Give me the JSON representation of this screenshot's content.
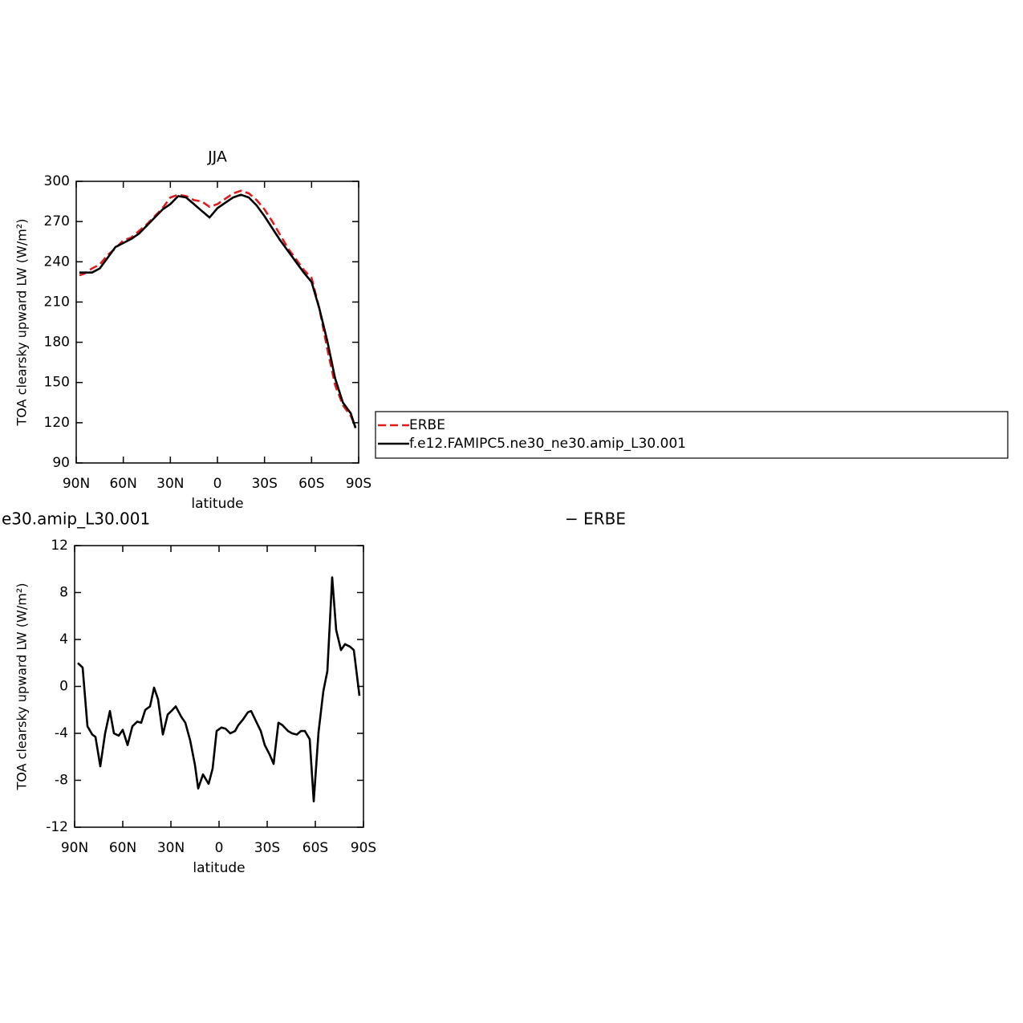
{
  "chart_data": [
    {
      "type": "line",
      "title": "JJA",
      "xlabel": "latitude",
      "ylabel": "TOA clearsky upward LW (W/m²)",
      "x": [
        88,
        85,
        80,
        75,
        70,
        65,
        60,
        55,
        50,
        45,
        40,
        35,
        30,
        25,
        20,
        15,
        10,
        5,
        0,
        -5,
        -10,
        -15,
        -20,
        -25,
        -30,
        -35,
        -40,
        -45,
        -50,
        -55,
        -60,
        -65,
        -70,
        -75,
        -80,
        -85,
        -88
      ],
      "series": [
        {
          "name": "ERBE",
          "color": "#e31a1c",
          "dashed": true,
          "values": [
            230,
            231,
            235,
            238,
            245,
            250,
            256,
            258,
            263,
            268,
            274,
            280,
            288,
            290,
            289,
            286,
            285,
            281,
            283,
            287,
            291,
            293,
            291,
            286,
            279,
            270,
            260,
            250,
            242,
            234,
            228,
            205,
            175,
            148,
            133,
            125,
            117
          ]
        },
        {
          "name": "f.e12.FAMIPC5.ne30_ne30.amip_L30.001",
          "color": "#000000",
          "dashed": false,
          "values": [
            232,
            232,
            232,
            235,
            243,
            251,
            254,
            257,
            261,
            267,
            273,
            279,
            283,
            289,
            288,
            283,
            278,
            273,
            280,
            284,
            288,
            290,
            288,
            282,
            274,
            265,
            256,
            248,
            240,
            232,
            225,
            205,
            181,
            153,
            135,
            127,
            116
          ]
        }
      ],
      "xlim": [
        90,
        -90
      ],
      "xticks": [
        {
          "value": 90,
          "label": "90N"
        },
        {
          "value": 60,
          "label": "60N"
        },
        {
          "value": 30,
          "label": "30N"
        },
        0,
        {
          "value": -30,
          "label": "30S"
        },
        {
          "value": -60,
          "label": "60S"
        },
        {
          "value": -90,
          "label": "90S"
        }
      ],
      "ylim": [
        90,
        300
      ],
      "yticks": [
        90,
        120,
        150,
        180,
        210,
        240,
        270,
        300
      ],
      "legend": "right"
    },
    {
      "type": "line",
      "title": "e30.amip_L30.001",
      "title_right": "− ERBE",
      "xlabel": "latitude",
      "ylabel": "TOA clearsky upward LW (W/m²)",
      "x": [
        88,
        85,
        82,
        79,
        77,
        74,
        71,
        68,
        65.5,
        62.5,
        60,
        57,
        54,
        51,
        48.5,
        46,
        43,
        40.5,
        38,
        35,
        32,
        29,
        27,
        23.5,
        21,
        18,
        15,
        13,
        10,
        6.5,
        4,
        1.5,
        -1.5,
        -4,
        -7,
        -10,
        -12,
        -15,
        -18,
        -20,
        -23.5,
        -26,
        -28.5,
        -31.5,
        -34,
        -37,
        -39.5,
        -43,
        -45.5,
        -48.5,
        -51,
        -53.5,
        -56.5,
        -59,
        -62,
        -65,
        -67.5,
        -70.5,
        -73,
        -76,
        -78.5,
        -81.5,
        -84,
        -87.5
      ],
      "values": [
        2.0,
        1.6,
        -3.4,
        -4.1,
        -4.3,
        -6.8,
        -4.0,
        -2.1,
        -4.0,
        -4.2,
        -3.7,
        -5.0,
        -3.4,
        -3.0,
        -3.1,
        -2.0,
        -1.7,
        -0.1,
        -1.1,
        -4.1,
        -2.4,
        -2.0,
        -1.7,
        -2.6,
        -3.1,
        -4.6,
        -6.7,
        -8.7,
        -7.5,
        -8.3,
        -7.0,
        -3.8,
        -3.5,
        -3.6,
        -4.0,
        -3.8,
        -3.3,
        -2.8,
        -2.2,
        -2.1,
        -3.1,
        -3.8,
        -5.0,
        -5.8,
        -6.6,
        -3.1,
        -3.3,
        -3.8,
        -4.0,
        -4.1,
        -3.8,
        -3.8,
        -4.5,
        -9.8,
        -3.9,
        -0.4,
        1.3,
        9.3,
        4.8,
        3.1,
        3.6,
        3.4,
        3.1,
        -0.8
      ],
      "color": "#000000",
      "xlim": [
        90,
        -90
      ],
      "xticks": [
        {
          "value": 90,
          "label": "90N"
        },
        {
          "value": 60,
          "label": "60N"
        },
        {
          "value": 30,
          "label": "30N"
        },
        0,
        {
          "value": -30,
          "label": "30S"
        },
        {
          "value": -60,
          "label": "60S"
        },
        {
          "value": -90,
          "label": "90S"
        }
      ],
      "ylim": [
        -12,
        12
      ],
      "yticks": [
        -12,
        -8,
        -4,
        0,
        4,
        8,
        12
      ]
    }
  ]
}
